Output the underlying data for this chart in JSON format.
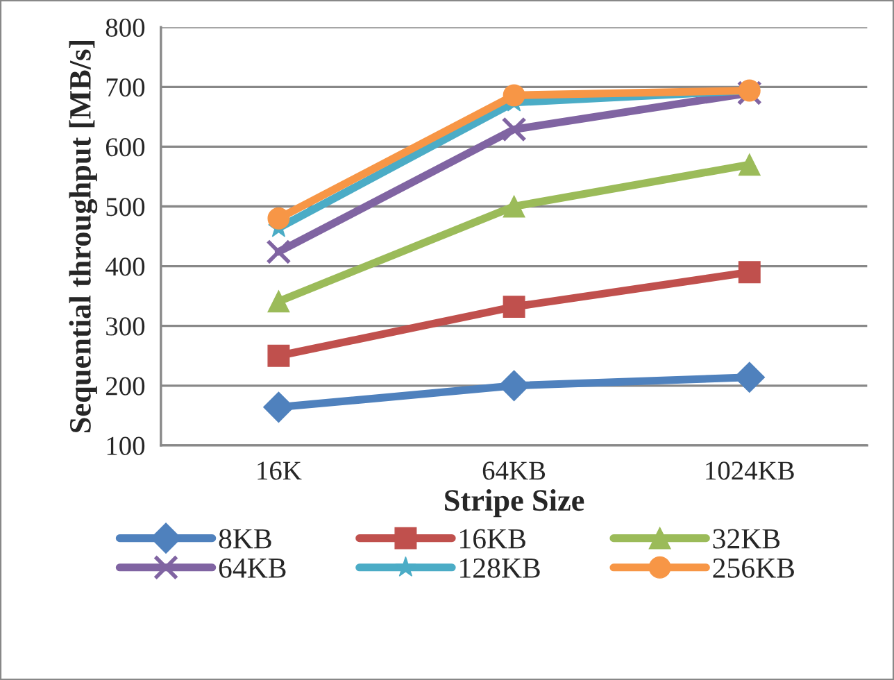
{
  "chart_data": {
    "type": "line",
    "xlabel": "Stripe Size",
    "ylabel": "Sequential throughput [MB/s]",
    "categories": [
      "16K",
      "64KB",
      "1024KB"
    ],
    "ylim": [
      100,
      800
    ],
    "yticks": [
      100,
      200,
      300,
      400,
      500,
      600,
      700,
      800
    ],
    "grid": "y",
    "legend": "bottom",
    "series": [
      {
        "name": "8KB",
        "color": "#4f81bd",
        "marker": "diamond",
        "values": [
          164,
          200,
          214
        ]
      },
      {
        "name": "16KB",
        "color": "#c0504d",
        "marker": "square",
        "values": [
          250,
          332,
          390
        ]
      },
      {
        "name": "32KB",
        "color": "#9bbb59",
        "marker": "triangle",
        "values": [
          341,
          500,
          570
        ]
      },
      {
        "name": "64KB",
        "color": "#8064a2",
        "marker": "cross",
        "values": [
          424,
          629,
          690
        ]
      },
      {
        "name": "128KB",
        "color": "#4bacc6",
        "marker": "star",
        "values": [
          464,
          674,
          694
        ]
      },
      {
        "name": "256KB",
        "color": "#f79646",
        "marker": "circle",
        "values": [
          480,
          686,
          694
        ]
      }
    ]
  }
}
